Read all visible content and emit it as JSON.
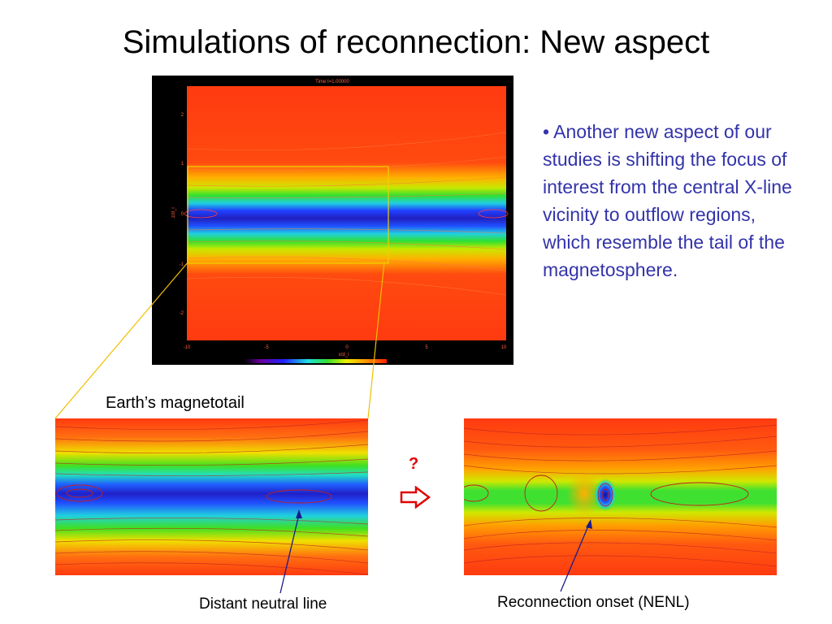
{
  "slide": {
    "title": "Simulations of reconnection: New aspect",
    "bullet_text": "• Another new aspect of our studies is shifting the focus of interest from the central X-line vicinity to outflow regions, which resemble the tail of the magnetosphere."
  },
  "top_plot": {
    "plot_title": "Time t=1.00000",
    "x_ticks": [
      "-10",
      "-5",
      "0",
      "5",
      "10"
    ],
    "y_ticks": [
      "2",
      "1",
      "0",
      "-1",
      "-2"
    ],
    "x_axis_label": "x/d_i",
    "y_axis_label": "z/d_i"
  },
  "labels": {
    "earth_magnetotail": "Earth’s magnetotail",
    "question_mark": "?",
    "distant_neutral_line": "Distant neutral line",
    "reconnection_onset": "Reconnection onset (NENL)"
  },
  "colors": {
    "bullet_text": "#3333aa",
    "question_mark": "#e00000",
    "arrow": "#e00000",
    "zoom_lines": "#f0c000",
    "pointer_lines": "#1a1a8c"
  },
  "icons": {
    "transition_arrow": "right-arrow-icon"
  }
}
